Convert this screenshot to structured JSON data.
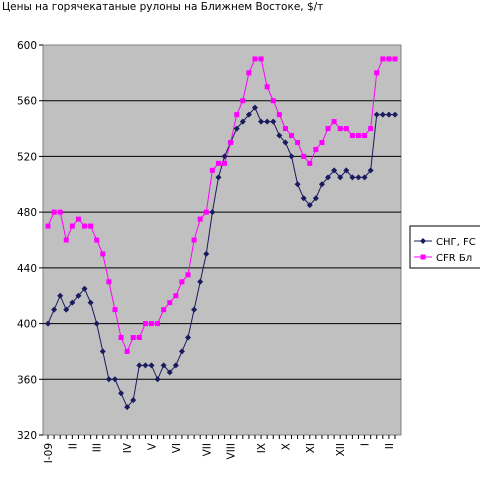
{
  "chart_data": {
    "type": "line",
    "title": "Цены на горячекатаные рулоны на Ближнем Востоке, $/т",
    "xlabel": "",
    "ylabel": "",
    "ylim": [
      320,
      600
    ],
    "yticks": [
      320,
      360,
      400,
      440,
      480,
      520,
      560,
      600
    ],
    "grid": true,
    "legend_position": "right",
    "month_ticks": [
      {
        "label": "I-09",
        "index": 0
      },
      {
        "label": "II",
        "index": 4
      },
      {
        "label": "III",
        "index": 8
      },
      {
        "label": "IV",
        "index": 13
      },
      {
        "label": "V",
        "index": 17
      },
      {
        "label": "VI",
        "index": 21
      },
      {
        "label": "VII",
        "index": 26
      },
      {
        "label": "VIII",
        "index": 30
      },
      {
        "label": "IX",
        "index": 35
      },
      {
        "label": "X",
        "index": 39
      },
      {
        "label": "XI",
        "index": 43
      },
      {
        "label": "XII",
        "index": 48
      },
      {
        "label": "I",
        "index": 52
      },
      {
        "label": "II",
        "index": 56
      }
    ],
    "series": [
      {
        "name": "СНГ, FOB",
        "legend_label": "СНГ, FC",
        "color": "#1a1a5e",
        "marker": "diamond",
        "values": [
          400,
          410,
          420,
          410,
          415,
          420,
          425,
          415,
          400,
          380,
          360,
          360,
          350,
          340,
          345,
          370,
          370,
          370,
          360,
          370,
          365,
          370,
          380,
          390,
          410,
          430,
          450,
          480,
          505,
          520,
          530,
          540,
          545,
          550,
          555,
          545,
          545,
          545,
          535,
          530,
          520,
          500,
          490,
          485,
          490,
          500,
          505,
          510,
          505,
          510,
          505,
          505,
          505,
          510,
          550,
          550,
          550,
          550
        ]
      },
      {
        "name": "CFR Ближний Восток",
        "legend_label": "CFR Бл",
        "color": "#ff00ff",
        "marker": "square",
        "values": [
          470,
          480,
          480,
          460,
          470,
          475,
          470,
          470,
          460,
          450,
          430,
          410,
          390,
          380,
          390,
          390,
          400,
          400,
          400,
          410,
          415,
          420,
          430,
          435,
          460,
          475,
          480,
          510,
          515,
          515,
          530,
          550,
          560,
          580,
          590,
          590,
          570,
          560,
          550,
          540,
          535,
          530,
          520,
          515,
          525,
          530,
          540,
          545,
          540,
          540,
          535,
          535,
          535,
          540,
          580,
          590,
          590,
          590
        ]
      }
    ]
  }
}
